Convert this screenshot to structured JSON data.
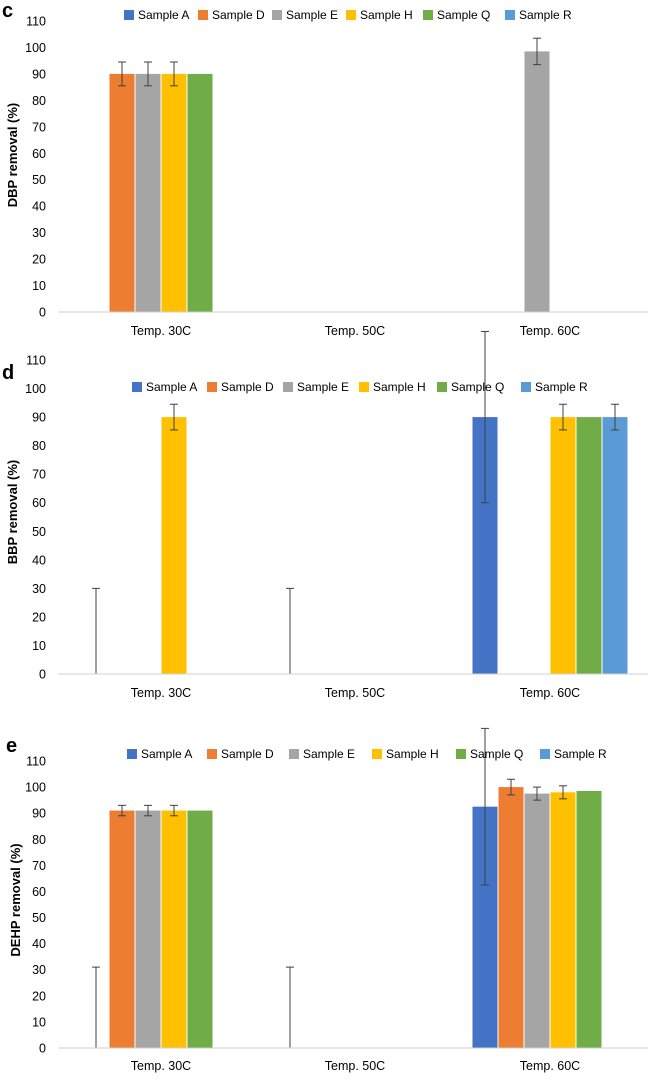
{
  "chart_data": [
    {
      "panel": "c",
      "type": "bar",
      "ylabel": "DBP removal (%)",
      "ylim": [
        0,
        110
      ],
      "ticks": [
        0,
        10,
        20,
        30,
        40,
        50,
        60,
        70,
        80,
        90,
        100,
        110
      ],
      "categories": [
        "Temp. 30C",
        "Temp. 50C",
        "Temp. 60C"
      ],
      "series": [
        {
          "name": "Sample A",
          "color": "#4472C4",
          "values": [
            0,
            0,
            0
          ],
          "errors": [
            0,
            0,
            0
          ]
        },
        {
          "name": "Sample D",
          "color": "#ED7D31",
          "values": [
            90,
            0,
            0
          ],
          "errors": [
            4.5,
            0,
            0
          ]
        },
        {
          "name": "Sample E",
          "color": "#A5A5A5",
          "values": [
            90,
            0,
            98.5
          ],
          "errors": [
            4.5,
            0,
            5
          ]
        },
        {
          "name": "Sample H",
          "color": "#FFC000",
          "values": [
            90,
            0,
            0
          ],
          "errors": [
            4.5,
            0,
            0
          ]
        },
        {
          "name": "Sample Q",
          "color": "#70AD47",
          "values": [
            90,
            0,
            0
          ],
          "errors": [
            0,
            0,
            0
          ]
        },
        {
          "name": "Sample R",
          "color": "#5B9BD5",
          "values": [
            0,
            0,
            0
          ],
          "errors": [
            0,
            0,
            0
          ]
        }
      ]
    },
    {
      "panel": "d",
      "type": "bar",
      "ylabel": "BBP removal (%)",
      "ylim": [
        0,
        110
      ],
      "ticks": [
        0,
        10,
        20,
        30,
        40,
        50,
        60,
        70,
        80,
        90,
        100,
        110
      ],
      "categories": [
        "Temp. 30C",
        "Temp. 50C",
        "Temp. 60C"
      ],
      "series": [
        {
          "name": "Sample A",
          "color": "#4472C4",
          "values": [
            0,
            0,
            90
          ],
          "errors": [
            30,
            30,
            30
          ]
        },
        {
          "name": "Sample D",
          "color": "#ED7D31",
          "values": [
            0,
            0,
            0
          ],
          "errors": [
            0,
            0,
            0
          ]
        },
        {
          "name": "Sample E",
          "color": "#A5A5A5",
          "values": [
            0,
            0,
            0
          ],
          "errors": [
            0,
            0,
            0
          ]
        },
        {
          "name": "Sample H",
          "color": "#FFC000",
          "values": [
            90,
            0,
            90
          ],
          "errors": [
            4.5,
            0,
            4.5
          ]
        },
        {
          "name": "Sample Q",
          "color": "#70AD47",
          "values": [
            0,
            0,
            90
          ],
          "errors": [
            0,
            0,
            0
          ]
        },
        {
          "name": "Sample R",
          "color": "#5B9BD5",
          "values": [
            0,
            0,
            90
          ],
          "errors": [
            0,
            0,
            4.5
          ]
        }
      ]
    },
    {
      "panel": "e",
      "type": "bar",
      "ylabel": "DEHP removal (%)",
      "ylim": [
        0,
        110
      ],
      "ticks": [
        0,
        10,
        20,
        30,
        40,
        50,
        60,
        70,
        80,
        90,
        100,
        110
      ],
      "categories": [
        "Temp. 30C",
        "Temp. 50C",
        "Temp. 60C"
      ],
      "series": [
        {
          "name": "Sample A",
          "color": "#4472C4",
          "values": [
            0,
            0,
            92.5
          ],
          "errors": [
            31,
            31,
            30
          ]
        },
        {
          "name": "Sample D",
          "color": "#ED7D31",
          "values": [
            91,
            0,
            100
          ],
          "errors": [
            2,
            0,
            3
          ]
        },
        {
          "name": "Sample E",
          "color": "#A5A5A5",
          "values": [
            91,
            0,
            97.5
          ],
          "errors": [
            2,
            0,
            2.5
          ]
        },
        {
          "name": "Sample H",
          "color": "#FFC000",
          "values": [
            91,
            0,
            98
          ],
          "errors": [
            2,
            0,
            2.5
          ]
        },
        {
          "name": "Sample Q",
          "color": "#70AD47",
          "values": [
            91,
            0,
            98.5
          ],
          "errors": [
            0,
            0,
            0
          ]
        },
        {
          "name": "Sample R",
          "color": "#5B9BD5",
          "values": [
            0,
            0,
            0
          ],
          "errors": [
            0,
            0,
            0
          ]
        }
      ]
    }
  ]
}
